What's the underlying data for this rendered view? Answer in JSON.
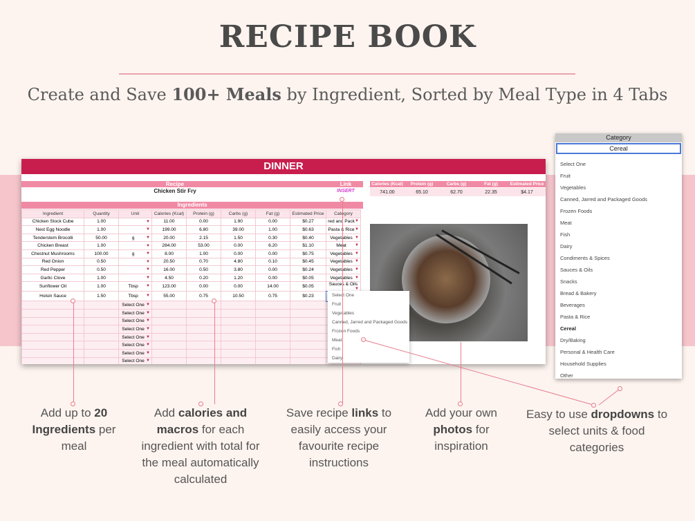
{
  "page": {
    "title": "RECIPE BOOK",
    "subtitle_pre": "Create and Save ",
    "subtitle_bold1": "100+ Meals",
    "subtitle_mid": " by Ingredient, Sorted by Meal Type in 4 Tabs"
  },
  "sheet": {
    "header": "DINNER",
    "recipe_label": "Recipe",
    "recipe_name": "Chicken Stir Fry",
    "link_label": "Link",
    "link_value": "INSERT",
    "ingredients_label": "Ingredients",
    "totals_headers": [
      "Calories (Kcal)",
      "Protein (g)",
      "Carbs (g)",
      "Fat (g)",
      "Estimated Price"
    ],
    "totals_values": [
      "741.00",
      "65.10",
      "62.70",
      "22.35",
      "$4.17"
    ],
    "columns": [
      "Ingredient",
      "Quantity",
      "Unit",
      "Calories (Kcal)",
      "Protein (g)",
      "Carbs (g)",
      "Fat (g)",
      "Estimated Price",
      "Category"
    ],
    "rows": [
      [
        "Chicken Stock Cube",
        "1.00",
        "",
        "11.00",
        "0.00",
        "1.90",
        "0.00",
        "$0.27",
        "red and Pack"
      ],
      [
        "Nest Egg Noodle",
        "1.00",
        "",
        "199.00",
        "6.80",
        "39.00",
        "1.00",
        "$0.63",
        "Pasta & Rice"
      ],
      [
        "Tenderstem Brocolli",
        "50.00",
        "g",
        "20.00",
        "2.15",
        "1.50",
        "0.30",
        "$0.40",
        "Vegetables"
      ],
      [
        "Chicken Breast",
        "1.00",
        "",
        "284.00",
        "53.00",
        "0.00",
        "6.20",
        "$1.10",
        "Meat"
      ],
      [
        "Chestnut Mushrooms",
        "100.00",
        "g",
        "8.00",
        "1.00",
        "0.00",
        "0.00",
        "$0.75",
        "Vegetables"
      ],
      [
        "Red Onion",
        "0.50",
        "",
        "20.50",
        "0.70",
        "4.80",
        "0.10",
        "$0.45",
        "Vegetables"
      ],
      [
        "Red Pepper",
        "0.50",
        "",
        "16.00",
        "0.50",
        "3.80",
        "0.00",
        "$0.24",
        "Vegetables"
      ],
      [
        "Garlic Clove",
        "1.00",
        "",
        "4.50",
        "0.20",
        "1.20",
        "0.00",
        "$0.05",
        "Vegetables"
      ],
      [
        "Sunflower Oil",
        "1.00",
        "Tbsp",
        "123.00",
        "0.00",
        "0.00",
        "14.00",
        "$0.05",
        "Sauces & Oils"
      ],
      [
        "Hoisin Sauce",
        "1.50",
        "Tbsp",
        "55.00",
        "0.75",
        "10.50",
        "0.75",
        "$0.23",
        "Sauces & Oils"
      ]
    ],
    "empty_unit": "Select One",
    "small_dropdown": [
      "Select One",
      "Fruit",
      "Vegetables",
      "Canned, Jarred and Packaged Goods",
      "Frozen Foods",
      "Meat",
      "Fish",
      "Dairy"
    ]
  },
  "category_panel": {
    "title": "Category",
    "input_value": "Cereal",
    "options": [
      "Select One",
      "Fruit",
      "Vegetables",
      "Canned, Jarred and Packaged Goods",
      "Frozen Foods",
      "Meat",
      "Fish",
      "Dairy",
      "Condiments & Spices",
      "Sauces & Oils",
      "Snacks",
      "Bread & Bakery",
      "Beverages",
      "Pasta & Rice",
      "Cereal",
      "Dry/Baking",
      "Personal & Health Care",
      "Household Supplies",
      "Other"
    ],
    "selected": "Cereal"
  },
  "captions": {
    "c1_pre": "Add up to ",
    "c1_bold": "20 Ingredients",
    "c1_post": " per meal",
    "c2_pre": "Add ",
    "c2_bold": "calories and macros",
    "c2_post": " for each ingredient with total for the meal automatically calculated",
    "c3_pre": "Save recipe ",
    "c3_bold": "links",
    "c3_post": " to easily access your favourite recipe instructions",
    "c4_pre": "Add your own ",
    "c4_bold": "photos",
    "c4_post": " for inspiration",
    "c5_pre": "Easy to use ",
    "c5_bold": "dropdowns",
    "c5_post": " to select units & food categories"
  },
  "colors": {
    "accent": "#c81e4e",
    "header_pink": "#f08aa4",
    "band": "#f6c5cc",
    "background": "#fdf4ef"
  }
}
